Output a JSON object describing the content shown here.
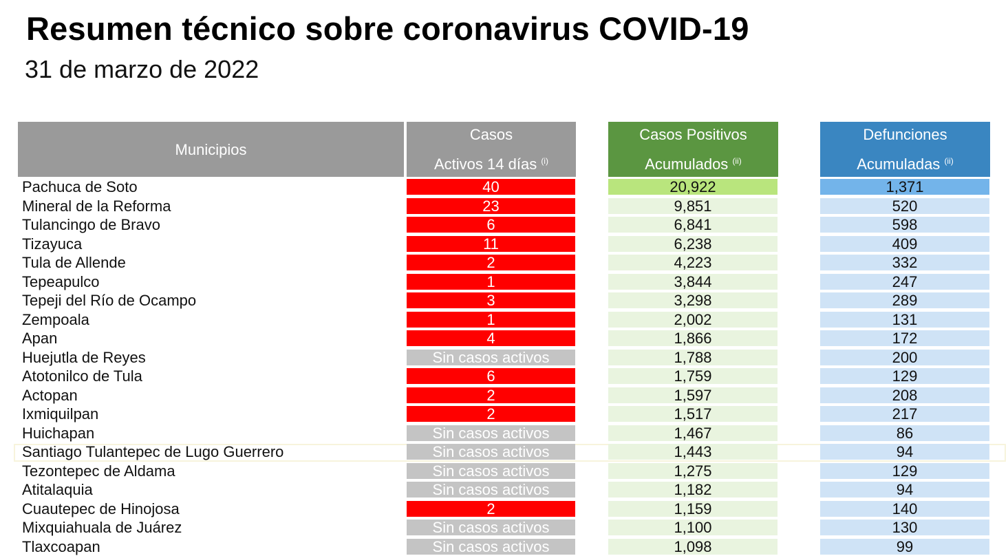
{
  "header": {
    "title": "Resumen técnico sobre coronavirus COVID-19",
    "date": "31 de marzo de 2022"
  },
  "columns": {
    "municipios": "Municipios",
    "activos_line1": "Casos",
    "activos_line2": "Activos 14 días",
    "activos_note": "(i)",
    "positivos_line1": "Casos Positivos",
    "positivos_line2": "Acumulados",
    "positivos_note": "(ii)",
    "defunciones_line1": "Defunciones",
    "defunciones_line2": "Acumuladas",
    "defunciones_note": "(ii)"
  },
  "colors": {
    "active_red": "#ff0000",
    "inactive_gray": "#c4c4c4",
    "header_gray": "#9a9a9a",
    "header_green": "#5b9641",
    "header_blue": "#3a86c1"
  },
  "rows": [
    {
      "name": "Pachuca de Soto",
      "active": "40",
      "positives": "20,922",
      "deaths": "1,371"
    },
    {
      "name": "Mineral de la Reforma",
      "active": "23",
      "positives": "9,851",
      "deaths": "520"
    },
    {
      "name": "Tulancingo de Bravo",
      "active": "6",
      "positives": "6,841",
      "deaths": "598"
    },
    {
      "name": "Tizayuca",
      "active": "11",
      "positives": "6,238",
      "deaths": "409"
    },
    {
      "name": "Tula de Allende",
      "active": "2",
      "positives": "4,223",
      "deaths": "332"
    },
    {
      "name": "Tepeapulco",
      "active": "1",
      "positives": "3,844",
      "deaths": "247"
    },
    {
      "name": "Tepeji del Río de Ocampo",
      "active": "3",
      "positives": "3,298",
      "deaths": "289"
    },
    {
      "name": "Zempoala",
      "active": "1",
      "positives": "2,002",
      "deaths": "131"
    },
    {
      "name": "Apan",
      "active": "4",
      "positives": "1,866",
      "deaths": "172"
    },
    {
      "name": "Huejutla de Reyes",
      "active": "Sin casos activos",
      "positives": "1,788",
      "deaths": "200"
    },
    {
      "name": "Atotonilco de Tula",
      "active": "6",
      "positives": "1,759",
      "deaths": "129"
    },
    {
      "name": "Actopan",
      "active": "2",
      "positives": "1,597",
      "deaths": "208"
    },
    {
      "name": "Ixmiquilpan",
      "active": "2",
      "positives": "1,517",
      "deaths": "217"
    },
    {
      "name": "Huichapan",
      "active": "Sin casos activos",
      "positives": "1,467",
      "deaths": "86"
    },
    {
      "name": "Santiago Tulantepec de Lugo Guerrero",
      "active": "Sin casos activos",
      "positives": "1,443",
      "deaths": "94"
    },
    {
      "name": "Tezontepec de Aldama",
      "active": "Sin casos activos",
      "positives": "1,275",
      "deaths": "129"
    },
    {
      "name": "Atitalaquia",
      "active": "Sin casos activos",
      "positives": "1,182",
      "deaths": "94"
    },
    {
      "name": "Cuautepec de Hinojosa",
      "active": "2",
      "positives": "1,159",
      "deaths": "140"
    },
    {
      "name": "Mixquiahuala de Juárez",
      "active": "Sin casos activos",
      "positives": "1,100",
      "deaths": "130"
    },
    {
      "name": "Tlaxcoapan",
      "active": "Sin casos activos",
      "positives": "1,098",
      "deaths": "99"
    }
  ]
}
